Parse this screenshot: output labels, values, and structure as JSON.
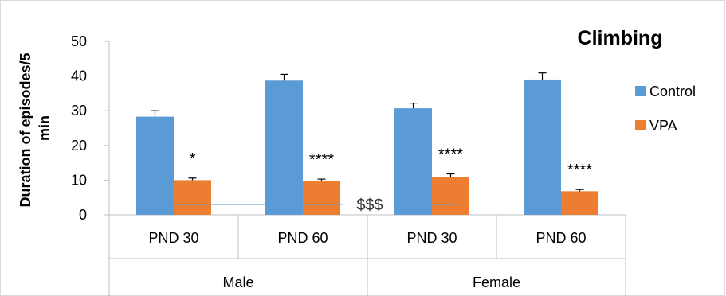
{
  "chart_data": {
    "type": "bar",
    "title": "Climbing",
    "ylabel_lines": [
      "Duration of episodes/5",
      "min"
    ],
    "xlabel": "",
    "ylim": [
      0,
      50
    ],
    "yticks": [
      0,
      10,
      20,
      30,
      40,
      50
    ],
    "categories": [
      "PND 30",
      "PND 60",
      "PND 30",
      "PND 60"
    ],
    "groups": [
      {
        "label": "Male",
        "span": [
          0,
          1
        ]
      },
      {
        "label": "Female",
        "span": [
          2,
          3
        ]
      }
    ],
    "series": [
      {
        "name": "Control",
        "color": "#5B9BD5",
        "values": [
          28.3,
          38.7,
          30.7,
          39.0
        ],
        "errors": [
          1.7,
          1.8,
          1.5,
          1.9
        ]
      },
      {
        "name": "VPA",
        "color": "#ED7D31",
        "values": [
          10.0,
          9.8,
          11.0,
          6.8
        ],
        "errors": [
          0.6,
          0.5,
          0.8,
          0.5
        ]
      }
    ],
    "annotations": [
      "*",
      "****",
      "****",
      "****"
    ],
    "significance": {
      "label": "$$$",
      "y": 3,
      "color": "#5B9BD5"
    },
    "legend": {
      "position": "right"
    },
    "grid": false
  }
}
